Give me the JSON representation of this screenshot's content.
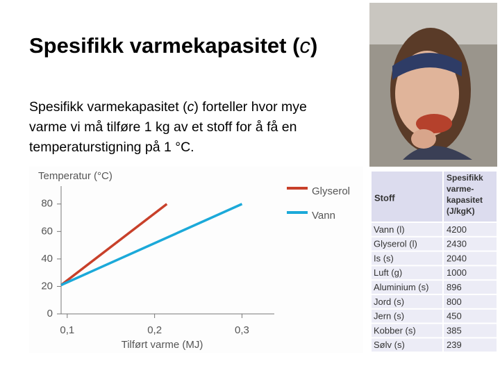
{
  "slide": {
    "title": [
      "Spesifikk varmekapasitet (",
      "c",
      ")"
    ],
    "body": [
      "Spesifikk varmekapasitet (",
      "c",
      ") forteller hvor mye varme vi må tilføre 1 kg av et stoff for å få en temperaturstigning på 1 °C."
    ]
  },
  "chart_data": {
    "type": "line",
    "y_label": "Temperatur (°C)",
    "x_label": "Tilført varme (MJ)",
    "series": [
      {
        "name": "Glyserol",
        "color": "#c8402a",
        "x": [
          0.093,
          0.214
        ],
        "values": [
          21,
          80
        ]
      },
      {
        "name": "Vann",
        "color": "#1ba9d9",
        "x": [
          0.093,
          0.3
        ],
        "values": [
          21,
          80
        ]
      }
    ],
    "xlim": [
      0.093,
      0.337
    ],
    "ylim": [
      0,
      90
    ],
    "xticks": [
      {
        "value": 0.1,
        "label": "0,1"
      },
      {
        "value": 0.2,
        "label": "0,2"
      },
      {
        "value": 0.3,
        "label": "0,3"
      }
    ],
    "yticks": [
      0,
      20,
      40,
      60,
      80
    ],
    "legend": "top-right"
  },
  "table": {
    "header": [
      "Stoff",
      [
        "Spesifikk",
        "varme-",
        "kapasitet",
        "(J/kgK)"
      ]
    ],
    "rows": [
      [
        "Vann (l)",
        4200
      ],
      [
        "Glyserol (l)",
        2430
      ],
      [
        "Is (s)",
        2040
      ],
      [
        "Luft (g)",
        1000
      ],
      [
        "Aluminium (s)",
        896
      ],
      [
        "Jord (s)",
        800
      ],
      [
        "Jern (s)",
        450
      ],
      [
        "Kobber (s)",
        385
      ],
      [
        "Sølv (s)",
        239
      ]
    ]
  }
}
